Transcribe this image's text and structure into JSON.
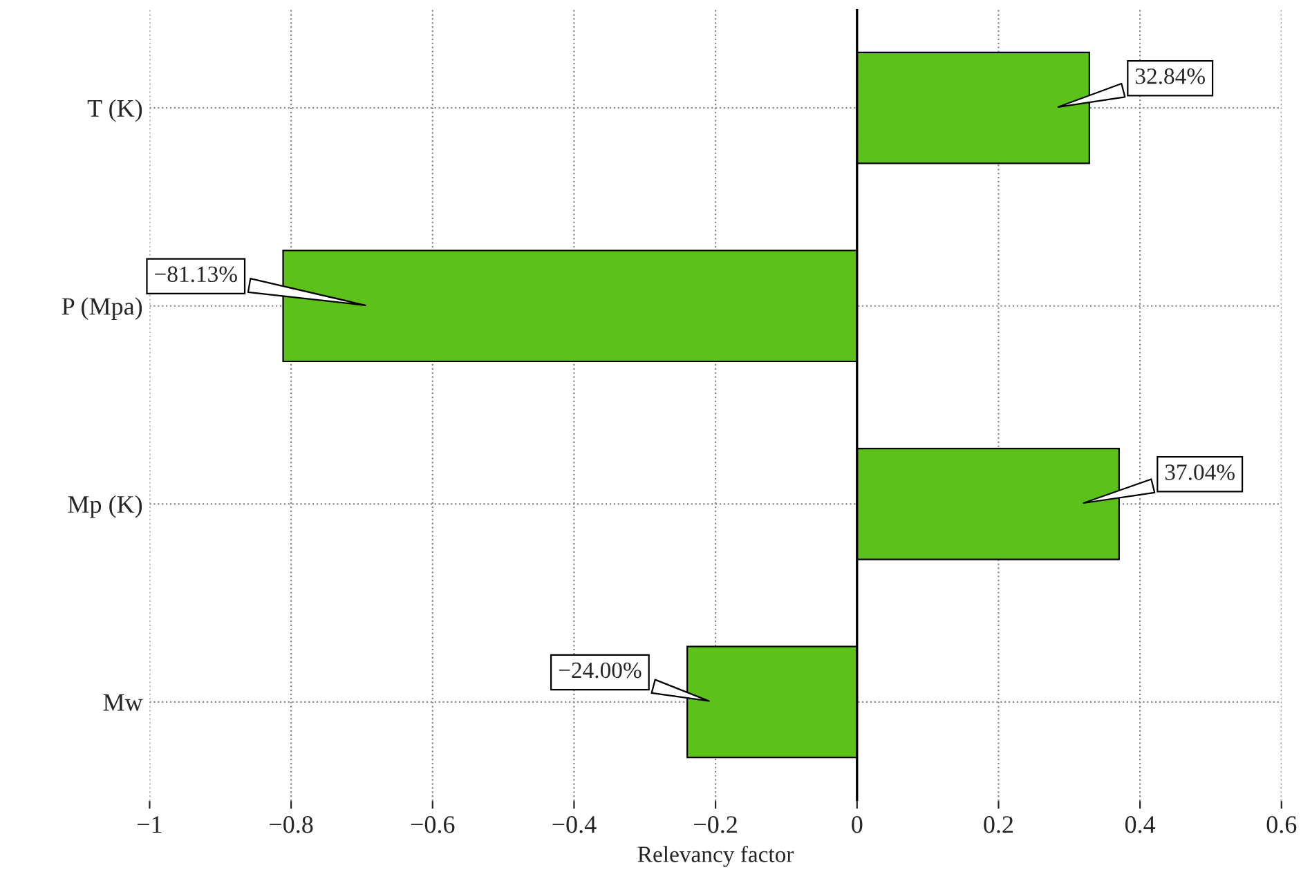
{
  "chart_data": {
    "type": "bar",
    "orientation": "horizontal",
    "xlabel": "Relevancy factor",
    "categories": [
      "T (K)",
      "P (Mpa)",
      "Mp (K)",
      "Mw"
    ],
    "values": [
      0.3284,
      -0.8113,
      0.3704,
      -0.24
    ],
    "value_labels": [
      "32.84%",
      "−81.13%",
      "37.04%",
      "−24.00%"
    ],
    "color": "#5cc21a",
    "xlim": [
      -1,
      0.6
    ],
    "xticks": [
      {
        "value": -1,
        "label": "−1"
      },
      {
        "value": -0.8,
        "label": "−0.8"
      },
      {
        "value": -0.6,
        "label": "−0.6"
      },
      {
        "value": -0.4,
        "label": "−0.4"
      },
      {
        "value": -0.2,
        "label": "−0.2"
      },
      0,
      0.2,
      0.4,
      0.6
    ],
    "ref_lines": [
      {
        "axis": "x",
        "value": 0,
        "color": "#000000"
      }
    ],
    "grid": true,
    "line_style": "dotted"
  }
}
